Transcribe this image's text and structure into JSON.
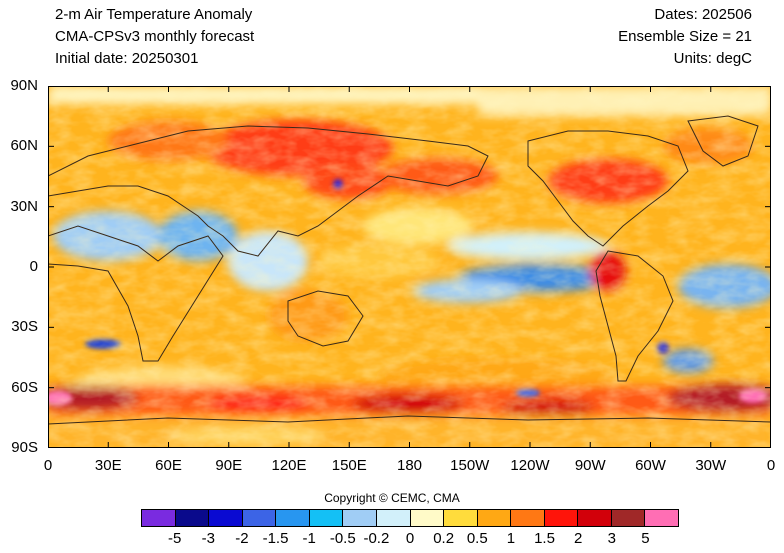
{
  "header": {
    "title": "2-m Air Temperature Anomaly",
    "model": "CMA-CPSv3 monthly forecast",
    "initial_date": "Initial date: 20250301",
    "dates": "Dates: 202506",
    "ensemble": "Ensemble Size = 21",
    "units": "Units: degC"
  },
  "map": {
    "lat_labels": [
      "90N",
      "60N",
      "30N",
      "0",
      "30S",
      "60S",
      "90S"
    ],
    "lon_labels": [
      "0",
      "30E",
      "60E",
      "90E",
      "120E",
      "150E",
      "180",
      "150W",
      "120W",
      "90W",
      "60W",
      "30W",
      "0"
    ],
    "projection": "cylindrical equidistant",
    "field": "2-m air temperature anomaly"
  },
  "copyright": "Copyright © CEMC, CMA",
  "legend": {
    "colors": [
      "#7a2be0",
      "#0a0a8c",
      "#0a0ad2",
      "#3c64e6",
      "#2896f0",
      "#14c0f5",
      "#a0cdf5",
      "#d2f0fa",
      "#fffac8",
      "#ffdc3c",
      "#ffa814",
      "#ff7814",
      "#ff140a",
      "#d2000a",
      "#a02828",
      "#ff6eb4"
    ],
    "labels": [
      "-5",
      "-3",
      "-2",
      "-1.5",
      "-1",
      "-0.5",
      "-0.2",
      "0",
      "0.2",
      "0.5",
      "1",
      "1.5",
      "2",
      "3",
      "5"
    ]
  }
}
